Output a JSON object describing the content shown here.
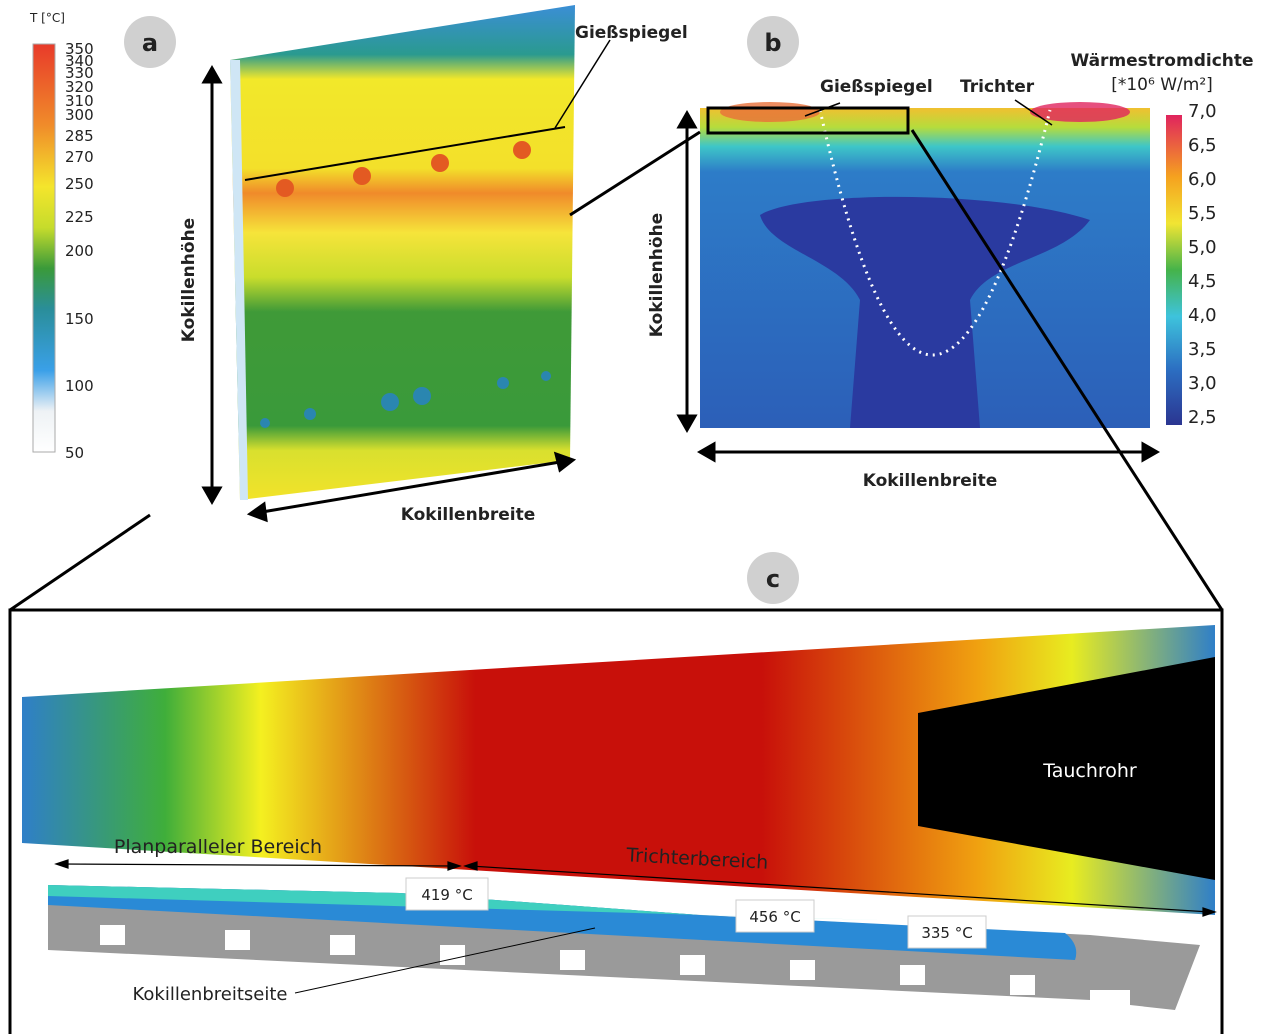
{
  "panel_a": {
    "label": "a",
    "legend_title": "T [°C]",
    "legend_ticks": [
      "350",
      "340",
      "330",
      "320",
      "310",
      "300",
      "285",
      "270",
      "250",
      "225",
      "200",
      "150",
      "100",
      "50"
    ],
    "annotation": "Gießspiegel",
    "y_axis": "Kokillenhöhe",
    "x_axis": "Kokillenbreite"
  },
  "panel_b": {
    "label": "b",
    "colorbar_title": [
      "Wärmestromdichte",
      "[*10⁶ W/m²]"
    ],
    "colorbar_ticks": [
      "7,0",
      "6,5",
      "6,0",
      "5,5",
      "5,0",
      "4,5",
      "4,0",
      "3,5",
      "3,0",
      "2,5"
    ],
    "annotations": [
      "Gießspiegel",
      "Trichter"
    ],
    "y_axis": "Kokillenhöhe",
    "x_axis": "Kokillenbreite"
  },
  "panel_c": {
    "label": "c",
    "nozzle": "Tauchrohr",
    "regions": [
      "Planparalleler Bereich",
      "Trichterbereich"
    ],
    "temperatures": [
      "419 °C",
      "456 °C",
      "335 °C"
    ],
    "part": "Kokillenbreitseite"
  }
}
